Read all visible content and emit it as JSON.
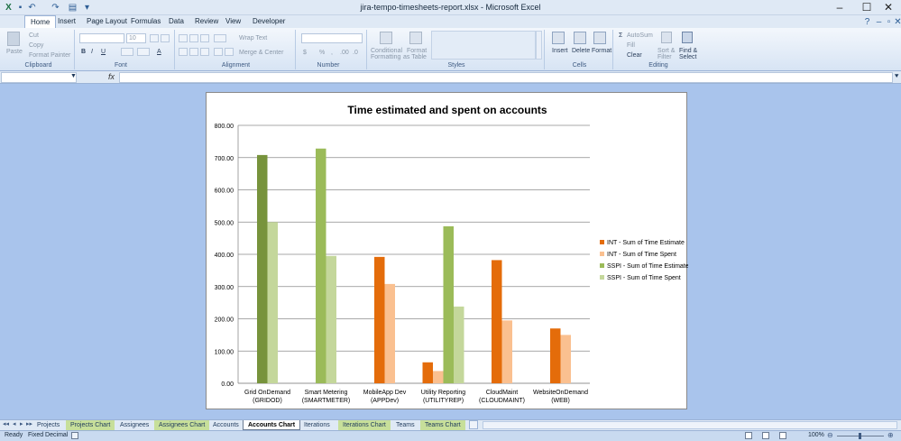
{
  "window": {
    "title": "jira-tempo-timesheets-report.xlsx - Microsoft Excel"
  },
  "ribbon_tabs": [
    "Home",
    "Insert",
    "Page Layout",
    "Formulas",
    "Data",
    "Review",
    "View",
    "Developer"
  ],
  "ribbon": {
    "clipboard": {
      "paste": "Paste",
      "cut": "Cut",
      "copy": "Copy",
      "format_painter": "Format Painter",
      "label": "Clipboard"
    },
    "font": {
      "name": "",
      "size": "10",
      "label": "Font"
    },
    "alignment": {
      "wrap": "Wrap Text",
      "merge": "Merge & Center",
      "label": "Alignment"
    },
    "number": {
      "format": "",
      "label": "Number"
    },
    "styles": {
      "cond": "Conditional",
      "cond2": "Formatting",
      "fmt": "Format",
      "fmt2": "as Table",
      "label": "Styles"
    },
    "cells": {
      "insert": "Insert",
      "delete": "Delete",
      "format": "Format",
      "label": "Cells"
    },
    "editing": {
      "autosum": "AutoSum",
      "fill": "Fill",
      "clear": "Clear",
      "sort": "Sort &",
      "sort2": "Filter",
      "find": "Find &",
      "find2": "Select",
      "label": "Editing"
    }
  },
  "formula_bar": {
    "name_box": "",
    "fx": "fx",
    "formula": ""
  },
  "sheet_tabs": [
    {
      "name": "Projects",
      "color": "none"
    },
    {
      "name": "Projects Chart",
      "color": "green"
    },
    {
      "name": "Assignees",
      "color": "none"
    },
    {
      "name": "Assignees Chart",
      "color": "green"
    },
    {
      "name": "Accounts",
      "color": "none"
    },
    {
      "name": "Accounts Chart",
      "color": "active"
    },
    {
      "name": "Iterations",
      "color": "none"
    },
    {
      "name": "Iterations Chart",
      "color": "green"
    },
    {
      "name": "Teams",
      "color": "none"
    },
    {
      "name": "Teams Chart",
      "color": "green"
    }
  ],
  "status": {
    "ready": "Ready",
    "fixed": "Fixed Decimal",
    "zoom": "100%"
  },
  "chart_data": {
    "type": "bar",
    "title": "Time estimated and spent on accounts",
    "categories": [
      [
        "Grid OnDemand",
        "(GRIDOD)"
      ],
      [
        "Smart Metering",
        "(SMARTMETER)"
      ],
      [
        "MobileApp Dev",
        "(APPDev)"
      ],
      [
        "Utility Reporting",
        "(UTILITYREP)"
      ],
      [
        "CloudMaint",
        "(CLOUDMAINT)"
      ],
      [
        "WebsiteOnDemand",
        "(WEB)"
      ]
    ],
    "series": [
      {
        "name": "INT - Sum of Time Estimate",
        "color": "#e46c0a",
        "values": [
          0,
          0,
          392,
          65,
          382,
          170
        ]
      },
      {
        "name": "INT - Sum of Time Spent",
        "color": "#fac090",
        "values": [
          0,
          0,
          308,
          38,
          195,
          150
        ]
      },
      {
        "name": "SSPI - Sum of Time Estimate",
        "color": "#9bbb59",
        "values": [
          708,
          728,
          0,
          487,
          0,
          0
        ]
      },
      {
        "name": "SSPI - Sum of Time Spent",
        "color": "#c4d79b",
        "values": [
          500,
          395,
          0,
          238,
          0,
          0
        ]
      }
    ],
    "series_colors_dark_first": [
      "#77933c"
    ],
    "y_ticks": [
      "0.00",
      "100.00",
      "200.00",
      "300.00",
      "400.00",
      "500.00",
      "600.00",
      "700.00",
      "800.00"
    ],
    "ylim": [
      0,
      800
    ],
    "grid": true,
    "legend": "right"
  }
}
